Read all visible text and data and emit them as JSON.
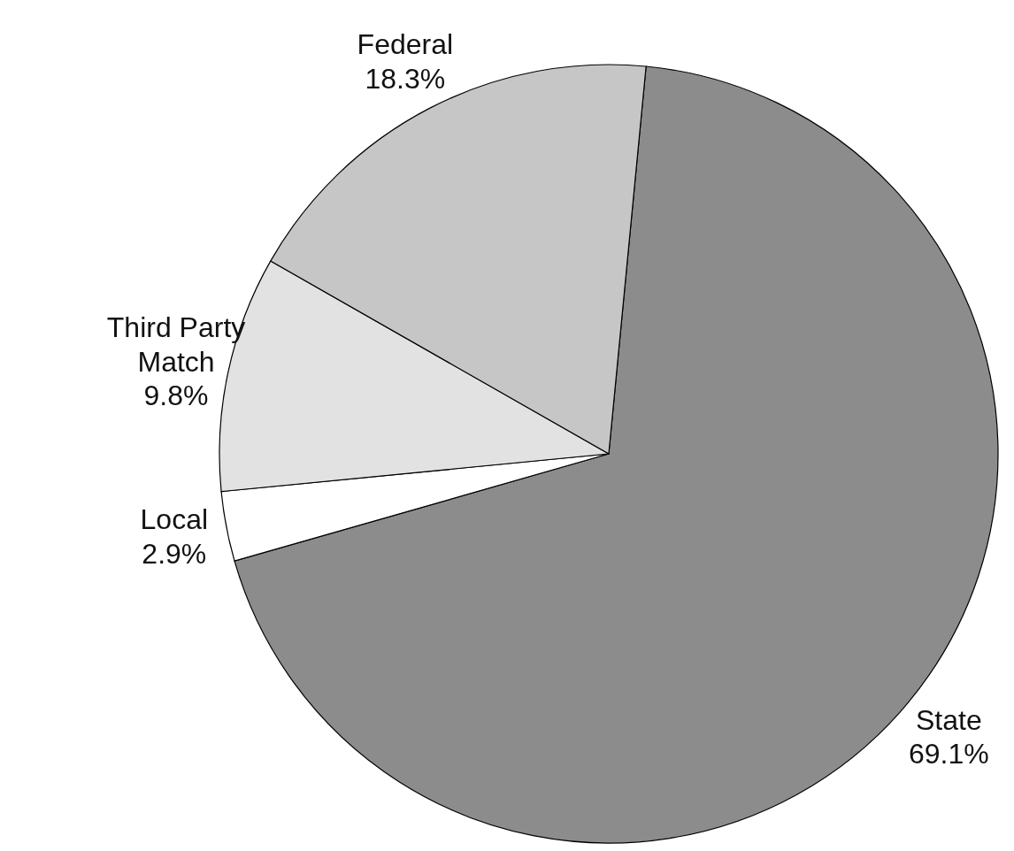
{
  "chart_data": {
    "type": "pie",
    "categories": [
      "State",
      "Local",
      "Third Party Match",
      "Federal"
    ],
    "values": [
      69.1,
      2.9,
      9.8,
      18.3
    ],
    "value_labels": [
      "69.1%",
      "2.9%",
      "9.8%",
      "18.3%"
    ],
    "colors": [
      "#8c8c8c",
      "#ffffff",
      "#e2e2e2",
      "#c6c6c6"
    ]
  }
}
